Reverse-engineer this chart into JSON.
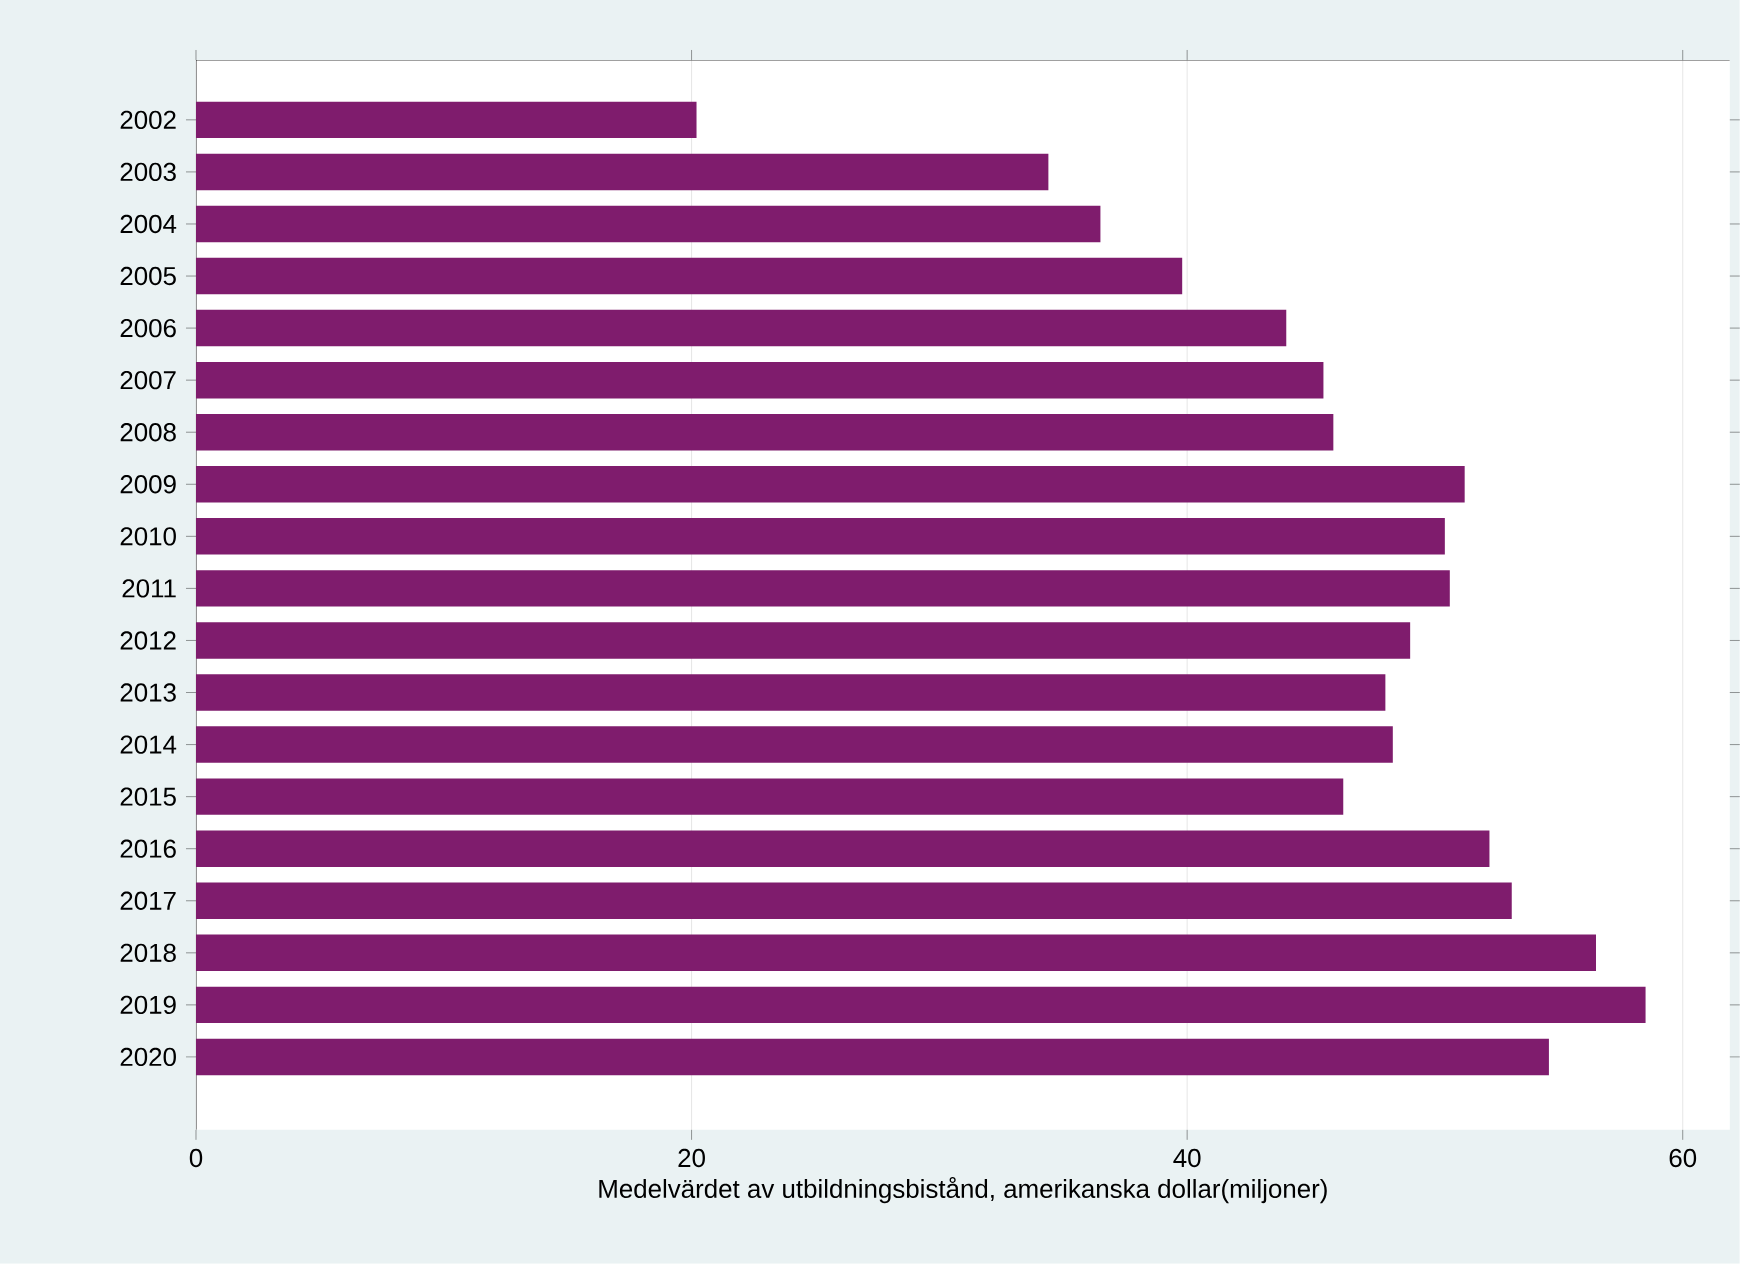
{
  "chart_data": {
    "type": "bar",
    "orientation": "horizontal",
    "xlabel": "Medelvärdet av utbildningsbistånd, amerikanska dollar(miljoner)",
    "categories": [
      "2002",
      "2003",
      "2004",
      "2005",
      "2006",
      "2007",
      "2008",
      "2009",
      "2010",
      "2011",
      "2012",
      "2013",
      "2014",
      "2015",
      "2016",
      "2017",
      "2018",
      "2019",
      "2020"
    ],
    "values": [
      20.2,
      34.4,
      36.5,
      39.8,
      44.0,
      45.5,
      45.9,
      51.2,
      50.4,
      50.6,
      49.0,
      48.0,
      48.3,
      46.3,
      52.2,
      53.1,
      56.5,
      58.5,
      54.6
    ],
    "color": "#7f1c6d",
    "xlim": [
      0,
      61.9
    ],
    "xticks": [
      0,
      20,
      40,
      60
    ],
    "grid": "x"
  }
}
